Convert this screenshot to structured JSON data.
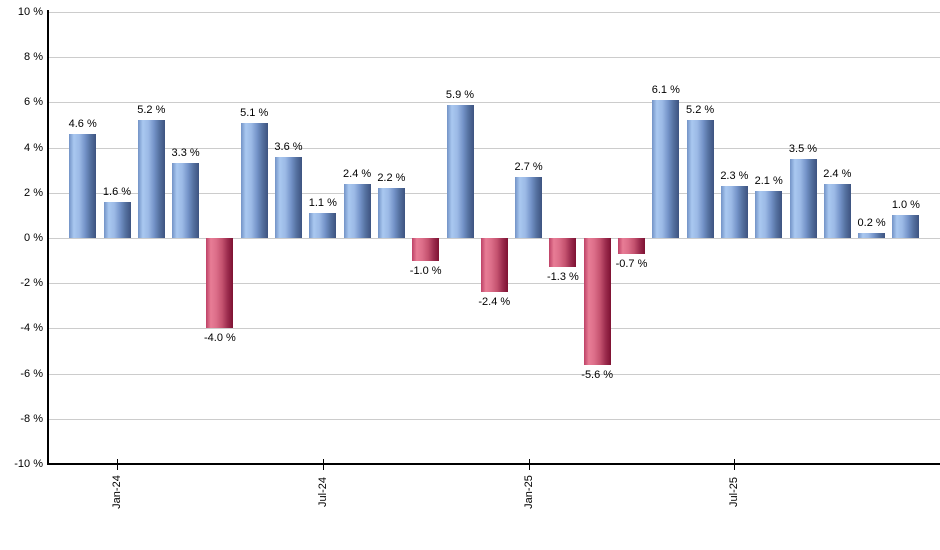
{
  "chart_data": {
    "type": "bar",
    "title": "",
    "xlabel": "",
    "ylabel": "",
    "unit": "%",
    "ylim": [
      -10,
      10
    ],
    "y_tick_step": 2,
    "grid": true,
    "legend": "none",
    "background": "#ffffff",
    "values": [
      4.6,
      1.6,
      5.2,
      3.3,
      -4.0,
      5.1,
      3.6,
      1.1,
      2.4,
      2.2,
      -1.0,
      5.9,
      -2.4,
      2.7,
      -1.3,
      -5.6,
      -0.7,
      6.1,
      5.2,
      2.3,
      2.1,
      3.5,
      2.4,
      0.2,
      1.0
    ],
    "bar_labels": [
      "4.6 %",
      "1.6 %",
      "5.2 %",
      "3.3 %",
      "-4.0 %",
      "5.1 %",
      "3.6 %",
      "1.1 %",
      "2.4 %",
      "2.2 %",
      "-1.0 %",
      "5.9 %",
      "-2.4 %",
      "2.7 %",
      "-1.3 %",
      "-5.6 %",
      "-0.7 %",
      "6.1 %",
      "5.2 %",
      "2.3 %",
      "2.1 %",
      "3.5 %",
      "2.4 %",
      "0.2 %",
      "1.0 %"
    ],
    "y_tick_labels": [
      "10 %",
      "8 %",
      "6 %",
      "4 %",
      "2 %",
      "0 %",
      "-2 %",
      "-4 %",
      "-6 %",
      "-8 %",
      "-10 %"
    ],
    "x_ticks": [
      {
        "label": "Jan-24",
        "bar_index": 1
      },
      {
        "label": "Jul-24",
        "bar_index": 7
      },
      {
        "label": "Jan-25",
        "bar_index": 13
      },
      {
        "label": "Jul-25",
        "bar_index": 19
      }
    ],
    "colors": {
      "positive_bar_gradient": [
        "#7292c6",
        "#a9c8f0",
        "#9cbae6",
        "#7493c8",
        "#54709f",
        "#3d5380"
      ],
      "negative_bar_gradient": [
        "#bd4166",
        "#e87d96",
        "#dc6e89",
        "#c4526f",
        "#9c2c4e",
        "#7e1132"
      ],
      "gridline": "#cccccc",
      "axis": "#000000",
      "label_text": "#000000"
    }
  }
}
